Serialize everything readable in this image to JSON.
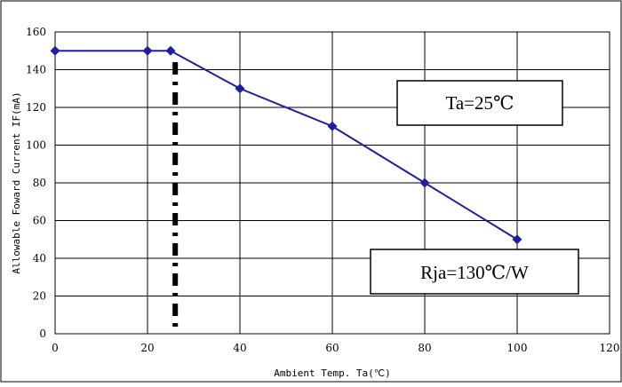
{
  "chart_data": {
    "type": "line",
    "xlabel": "Ambient Temp. Ta(℃)",
    "ylabel": "Allowable Foward Current IF(mA)",
    "xlim": [
      0,
      120
    ],
    "ylim": [
      0,
      160
    ],
    "x_ticks": [
      "0",
      "20",
      "40",
      "60",
      "80",
      "100",
      "120"
    ],
    "y_ticks": [
      "0",
      "20",
      "40",
      "60",
      "80",
      "100",
      "120",
      "140",
      "160"
    ],
    "grid": true,
    "series": [
      {
        "x": [
          0,
          20,
          25,
          40,
          60,
          80,
          100
        ],
        "y": [
          150,
          150,
          150,
          130,
          110,
          80,
          50
        ],
        "color": "#1f1f9e"
      }
    ],
    "reference_line": {
      "x": 26
    },
    "annotations": [
      {
        "text": "Ta=25℃"
      },
      {
        "text": "Rja=130℃/W"
      }
    ]
  }
}
